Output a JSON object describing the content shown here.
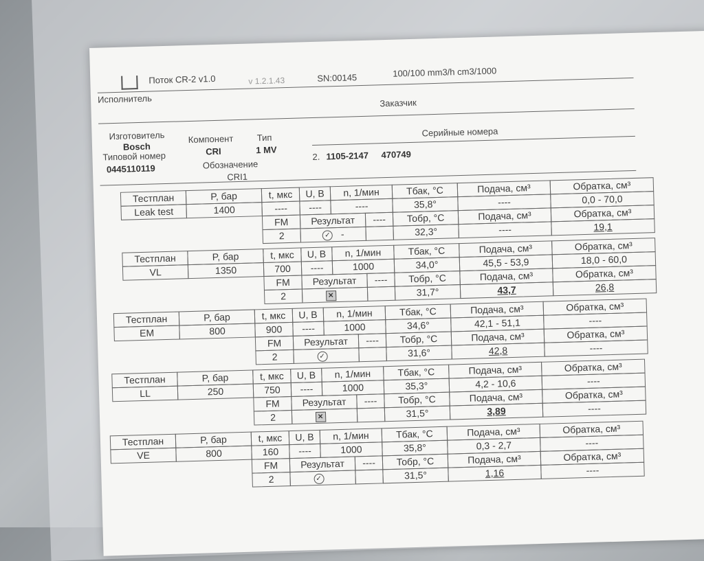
{
  "header": {
    "app_title": "Поток CR-2 v1.0",
    "version": "v 1.2.1.43",
    "serial": "SN:00145",
    "units": "100/100 mm3/h cm3/1000",
    "performer_label": "Исполнитель",
    "customer_label": "Заказчик"
  },
  "component": {
    "manufacturer_label": "Изготовитель",
    "manufacturer": "Bosch",
    "component_label": "Компонент",
    "component": "CRI",
    "type_label": "Тип",
    "type": "1 MV",
    "part_number_label": "Типовой номер",
    "part_number": "0445110119",
    "designation_label": "Обозначение",
    "designation": "CRI1",
    "serials_label": "Серийные номера",
    "serial_index": "2.",
    "serial_a": "1105-2147",
    "serial_b": "470749"
  },
  "columns": {
    "testplan": "Тестплан",
    "pressure": "P, бар",
    "time": "t, мкс",
    "voltage": "U, В",
    "rpm": "n, 1/мин",
    "t_tank": "Tбак, °C",
    "delivery": "Подача, см³",
    "return": "Обратка, см³",
    "fm": "FM",
    "result": "Результат",
    "dash": "----",
    "t_return": "Тобр, °C"
  },
  "tests": [
    {
      "name": "Leak test",
      "pressure": "1400",
      "time": "----",
      "voltage": "----",
      "rpm": "----",
      "t_tank": "35,8°",
      "delivery": "----",
      "return": "0,0 - 70,0",
      "fm": "2",
      "result": "pass",
      "result_note": "-",
      "t_return": "32,3°",
      "delivery_meas": "----",
      "return_meas": "19,1"
    },
    {
      "name": "VL",
      "pressure": "1350",
      "time": "700",
      "voltage": "----",
      "rpm": "1000",
      "t_tank": "34,0°",
      "delivery": "45,5 - 53,9",
      "return": "18,0 - 60,0",
      "fm": "2",
      "result": "fail",
      "result_note": "",
      "t_return": "31,7°",
      "delivery_meas": "43,7",
      "return_meas": "26,8"
    },
    {
      "name": "EM",
      "pressure": "800",
      "time": "900",
      "voltage": "----",
      "rpm": "1000",
      "t_tank": "34,6°",
      "delivery": "42,1 - 51,1",
      "return": "----",
      "fm": "2",
      "result": "pass",
      "result_note": "",
      "t_return": "31,6°",
      "delivery_meas": "42,8",
      "return_meas": "----"
    },
    {
      "name": "LL",
      "pressure": "250",
      "time": "750",
      "voltage": "----",
      "rpm": "1000",
      "t_tank": "35,3°",
      "delivery": "4,2 - 10,6",
      "return": "----",
      "fm": "2",
      "result": "fail",
      "result_note": "",
      "t_return": "31,5°",
      "delivery_meas": "3,89",
      "return_meas": "----"
    },
    {
      "name": "VE",
      "pressure": "800",
      "time": "160",
      "voltage": "----",
      "rpm": "1000",
      "t_tank": "35,8°",
      "delivery": "0,3 - 2,7",
      "return": "----",
      "fm": "2",
      "result": "pass",
      "result_note": "",
      "t_return": "31,5°",
      "delivery_meas": "1,16",
      "return_meas": "----"
    }
  ]
}
